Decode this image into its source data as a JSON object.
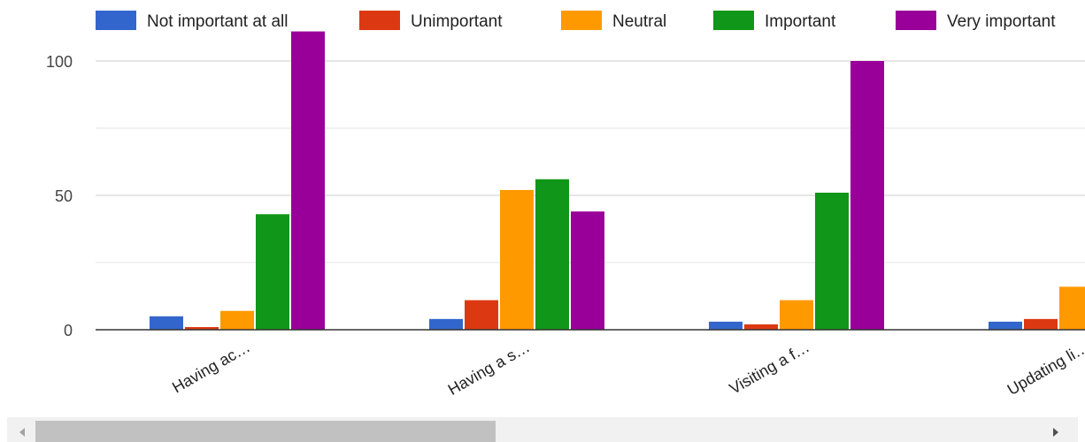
{
  "chart_data": {
    "type": "bar",
    "categories": [
      "Having ac…",
      "Having a s…",
      "Visiting a f…",
      "Updating li…"
    ],
    "series": [
      {
        "name": "Not important at all",
        "color": "#3366cc",
        "values": [
          5,
          4,
          3,
          3
        ]
      },
      {
        "name": "Unimportant",
        "color": "#dc3912",
        "values": [
          1,
          11,
          2,
          4
        ]
      },
      {
        "name": "Neutral",
        "color": "#ff9900",
        "values": [
          7,
          52,
          11,
          16
        ]
      },
      {
        "name": "Important",
        "color": "#109618",
        "values": [
          43,
          56,
          51,
          null
        ]
      },
      {
        "name": "Very important",
        "color": "#990099",
        "values": [
          111,
          44,
          100,
          null
        ]
      }
    ],
    "yticks": [
      0,
      50,
      100
    ],
    "ylim": [
      0,
      120
    ],
    "grid": true,
    "legend_position": "top"
  }
}
